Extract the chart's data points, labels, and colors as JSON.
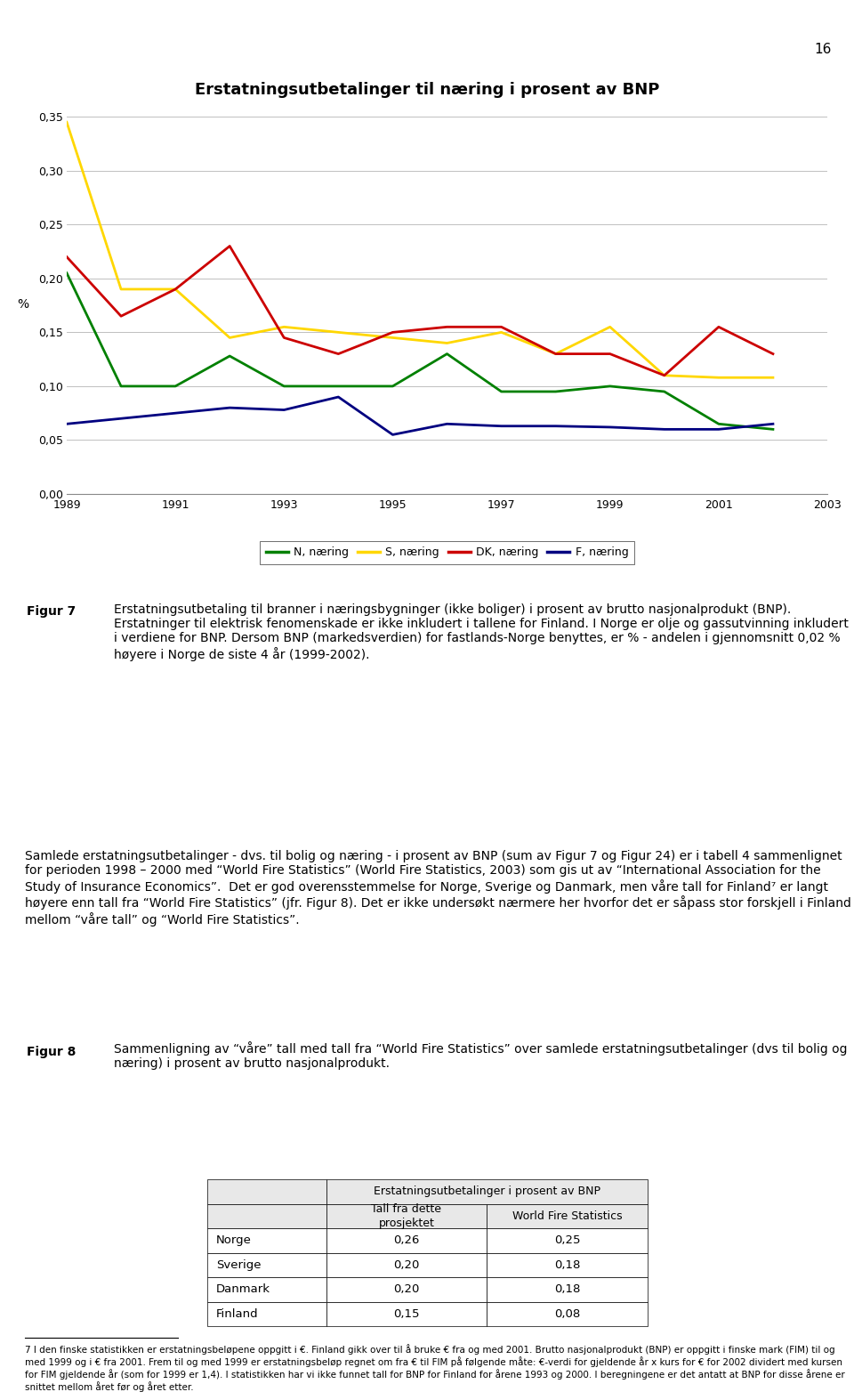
{
  "title": "Erstatningsutbetalinger til næring i prosent av BNP",
  "years": [
    1989,
    1990,
    1991,
    1992,
    1993,
    1994,
    1995,
    1996,
    1997,
    1998,
    1999,
    2000,
    2001,
    2002
  ],
  "N_naering": [
    0.205,
    0.1,
    0.1,
    0.128,
    0.1,
    0.1,
    0.1,
    0.13,
    0.095,
    0.095,
    0.1,
    0.095,
    0.065,
    0.06
  ],
  "S_naering": [
    0.345,
    0.19,
    0.19,
    0.145,
    0.155,
    0.15,
    0.145,
    0.14,
    0.15,
    0.13,
    0.155,
    0.11,
    0.108,
    0.108
  ],
  "DK_naering": [
    0.22,
    0.165,
    0.19,
    0.23,
    0.145,
    0.13,
    0.15,
    0.155,
    0.155,
    0.13,
    0.13,
    0.11,
    0.155,
    0.13
  ],
  "F_naering": [
    0.065,
    0.07,
    0.075,
    0.08,
    0.078,
    0.09,
    0.055,
    0.065,
    0.063,
    0.063,
    0.062,
    0.06,
    0.06,
    0.065
  ],
  "N_color": "#008000",
  "S_color": "#FFD700",
  "DK_color": "#CC0000",
  "F_color": "#000080",
  "ylabel": "%",
  "ylim_min": 0.0,
  "ylim_max": 0.35,
  "yticks": [
    0.0,
    0.05,
    0.1,
    0.15,
    0.2,
    0.25,
    0.3,
    0.35
  ],
  "xticks": [
    1989,
    1991,
    1993,
    1995,
    1997,
    1999,
    2001,
    2003
  ],
  "legend_labels": [
    "N, næring",
    "S, næring",
    "DK, næring",
    "F, næring"
  ],
  "page_number": "16",
  "fig7_label": "Figur 7",
  "fig7_text": "Erstatningsutbetaling til branner i næringsbygninger (ikke boliger) i prosent av brutto nasjonalprodukt (BNP). Erstatninger til elektrisk fenomenskade er ikke inkludert i tallene for Finland. I Norge er olje og gassutvinning inkludert i verdiene for BNP. Dersom BNP (markedsverdien) for fastlands-Norge benyttes, er % - andelen i gjennomsnitt 0,02 % høyere i Norge de siste 4 år (1999-2002).",
  "body_text": "Samlede erstatningsutbetalinger - dvs. til bolig og næring - i prosent av BNP (sum av Figur 7 og Figur 24) er i tabell 4 sammenlignet for perioden 1998 – 2000 med “World Fire Statistics” (World Fire Statistics, 2003) som gis ut av “International Association for the Study of Insurance Economics”.  Det er god overensstemmelse for Norge, Sverige og Danmark, men våre tall for Finland⁷ er langt høyere enn tall fra “World Fire Statistics” (jfr. Figur 8). Det er ikke undersøkt nærmere her hvorfor det er såpass stor forskjell i Finland mellom “våre tall” og “World Fire Statistics”.",
  "fig8_label": "Figur 8",
  "fig8_text": "Sammenligning av “våre” tall med tall fra “World Fire Statistics” over samlede erstatningsutbetalinger (dvs til bolig og næring) i prosent av brutto nasjonalprodukt.",
  "table_header_merged": "Erstatningsutbetalinger i prosent av BNP",
  "table_col1_header": "Tall fra dette\nprosjektet",
  "table_col2_header": "World Fire Statistics",
  "table_rows": [
    [
      "Norge",
      "0,26",
      "0,25"
    ],
    [
      "Sverige",
      "0,20",
      "0,18"
    ],
    [
      "Danmark",
      "0,20",
      "0,18"
    ],
    [
      "Finland",
      "0,15",
      "0,08"
    ]
  ],
  "footnote_superscript": "7",
  "footnote_text": " I den finske statistikken er erstatningsbeløpene oppgitt i €. Finland gikk over til å bruke € fra og med 2001. Brutto nasjonalprodukt (BNP) er oppgitt i finske mark (FIM) til og med 1999 og i € fra 2001. Frem til og med 1999 er erstatningsbeløp regnet om fra € til FIM på følgende måte: €-verdi for gjeldende år x kurs for € for 2002 dividert med kursen for FIM gjeldende år (som for 1999 er 1,4). I statistikken har vi ikke funnet tall for BNP for Finland for årene 1993 og 2000. I beregningene er det antatt at BNP for disse årene er snittet mellom året før og året etter.",
  "bg_color": "#FFFFFF"
}
